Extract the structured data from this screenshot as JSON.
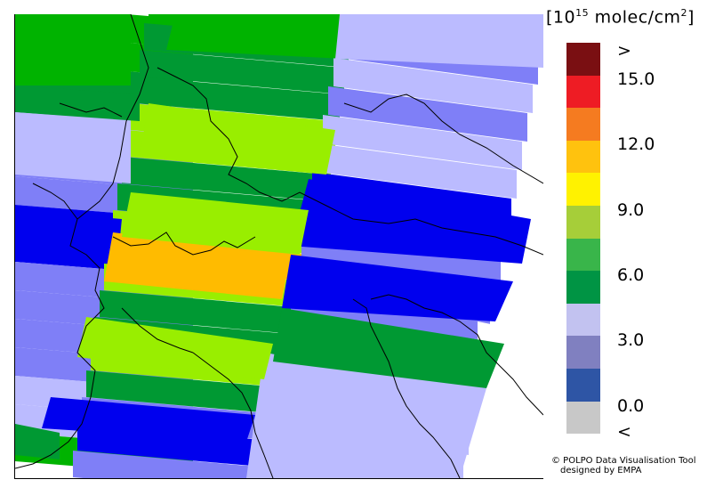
{
  "units": {
    "prefix": "[10",
    "exp": "15",
    "suffix": " molec/cm",
    "sq": "2",
    "close": "]"
  },
  "colorbar": {
    "colors": [
      "#7a0f12",
      "#ee1c24",
      "#f57b20",
      "#ffc20e",
      "#fff200",
      "#a6ce39",
      "#39b54a",
      "#009444",
      "#c2c2f0",
      "#8080c0",
      "#2e55a5",
      "#c8c8c8"
    ],
    "labels": [
      ">",
      "15.0",
      "12.0",
      "9.0",
      "6.0",
      "3.0",
      "0.0",
      "<"
    ]
  },
  "map_colors": {
    "dark_green": "#009933",
    "green": "#00b300",
    "lime": "#99ee00",
    "orange": "#ffbb00",
    "lavender": "#bbbbff",
    "medium_blue": "#7f7ff7",
    "blue": "#0000ee",
    "white": "#ffffff"
  },
  "credit": {
    "line1": "© POLPO Data Visualisation Tool",
    "line2": "designed by EMPA"
  }
}
